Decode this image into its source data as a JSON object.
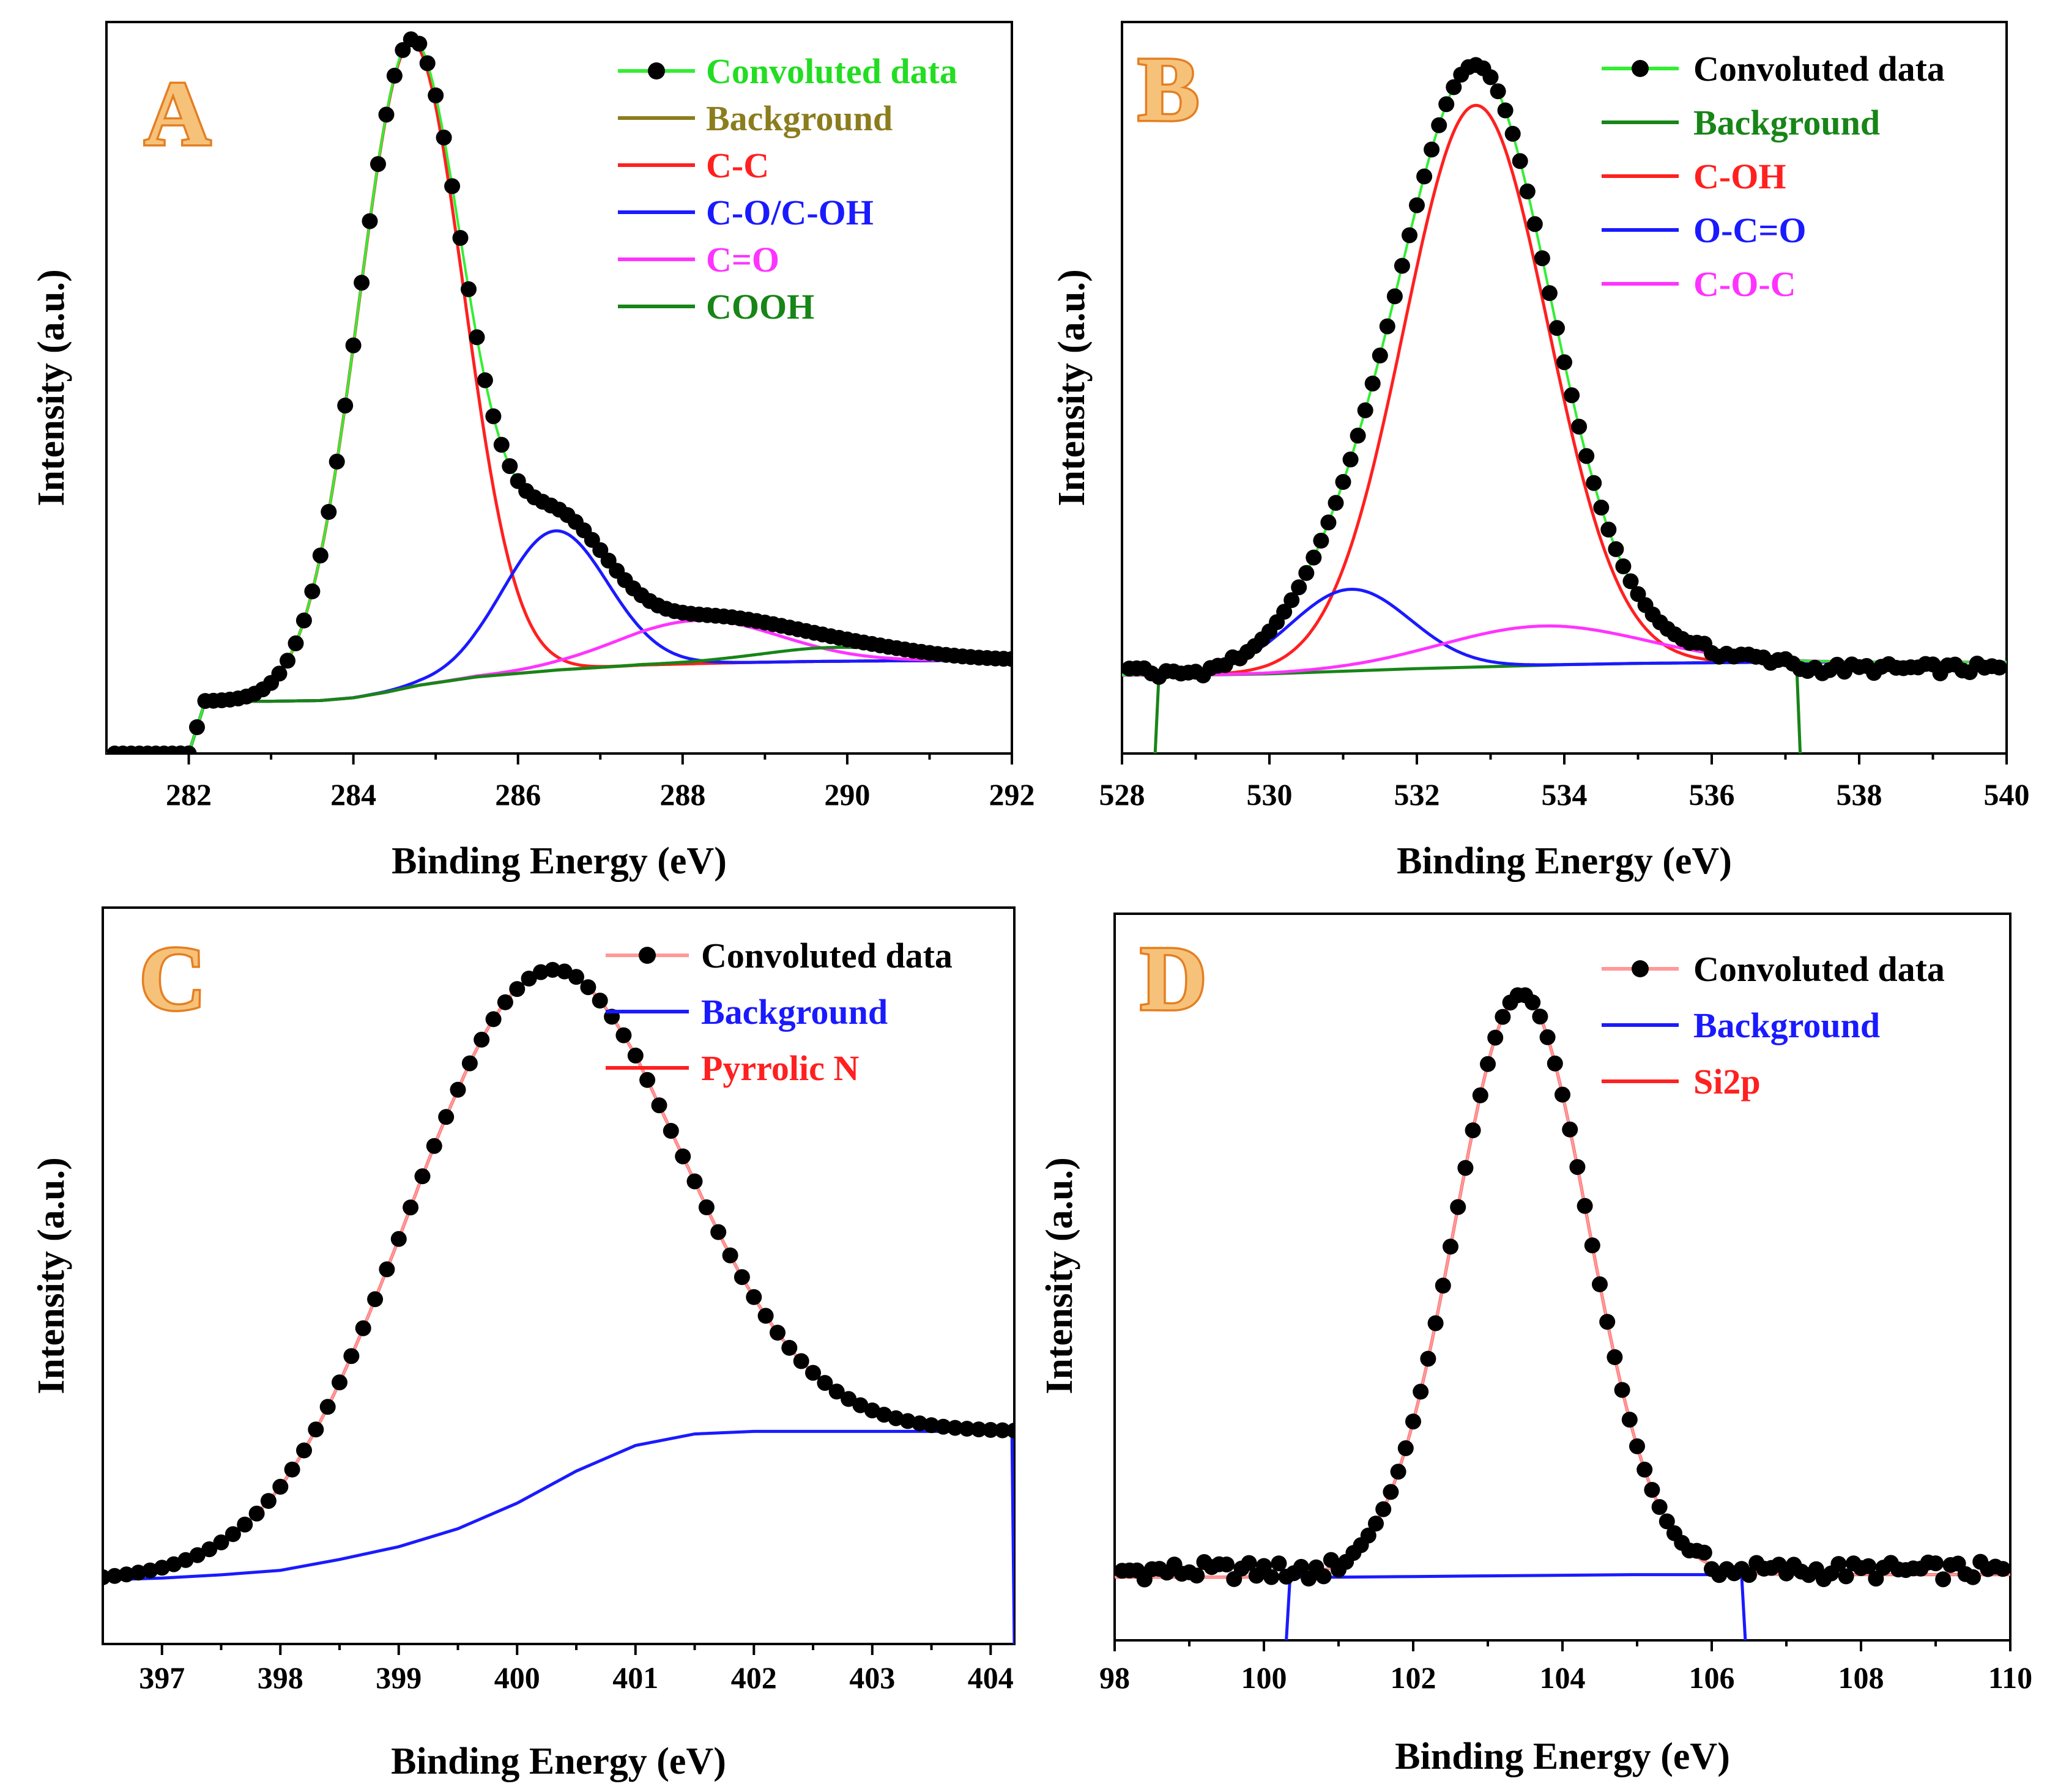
{
  "figure": {
    "panels": [
      "A",
      "B",
      "C",
      "D"
    ]
  },
  "chart_data": [
    {
      "panel": "A",
      "type": "line",
      "xlabel": "Binding Energy (eV)",
      "ylabel": "Intensity (a.u.)",
      "xlim": [
        281,
        292
      ],
      "ylim": [
        -0.03,
        1.02
      ],
      "xticks": [
        "282",
        "284",
        "286",
        "288",
        "290",
        "292"
      ],
      "x_reversed": false,
      "background": {
        "color": "#8B7D1E",
        "xs": [
          282.0,
          282.2,
          283.0,
          283.6,
          284.0,
          284.4,
          284.8,
          285.5,
          286.5,
          287.5,
          288.5,
          289.5,
          290.5,
          292.0
        ],
        "ys": [
          -0.03,
          0.045,
          0.045,
          0.046,
          0.05,
          0.058,
          0.068,
          0.08,
          0.09,
          0.097,
          0.1,
          0.102,
          0.103,
          0.104
        ]
      },
      "peaks": [
        {
          "name": "C-C",
          "color": "#ff2020",
          "center": 284.7,
          "height": 0.925,
          "fwhm": 1.5,
          "offset": "background"
        },
        {
          "name": "C-O/C-OH",
          "color": "#1a1aff",
          "center": 286.45,
          "height": 0.2,
          "fwhm": 1.5,
          "offset": "background"
        },
        {
          "name": "C=O",
          "color": "#ff33ff",
          "center": 288.2,
          "height": 0.062,
          "fwhm": 2.3,
          "offset": "background"
        },
        {
          "name": "COOH",
          "color": "#178517",
          "center": 289.9,
          "height": 0.02,
          "fwhm": 2.2,
          "offset": "background"
        }
      ],
      "data_points": {
        "name": "Convoluted data",
        "line_color": "#33ee33",
        "x_start": 281.1,
        "x_end": 292.0,
        "step": 0.1,
        "baseline": 0.04
      },
      "legend": [
        {
          "label": "Convoluted data",
          "color": "#22dd22",
          "marker": true
        },
        {
          "label": "Background",
          "color": "#8B7D1E",
          "marker": false
        },
        {
          "label": "C-C",
          "color": "#ff2020",
          "marker": false
        },
        {
          "label": "C-O/C-OH",
          "color": "#1a1aff",
          "marker": false
        },
        {
          "label": "C=O",
          "color": "#ff33ff",
          "marker": false
        },
        {
          "label": "COOH",
          "color": "#178517",
          "marker": false
        }
      ]
    },
    {
      "panel": "B",
      "type": "line",
      "xlabel": "Binding Energy (eV)",
      "ylabel": "Intensity (a.u.)",
      "xlim": [
        528,
        540
      ],
      "ylim": [
        -0.12,
        1.0
      ],
      "xticks": [
        "528",
        "530",
        "532",
        "534",
        "536",
        "538",
        "540"
      ],
      "x_reversed": false,
      "background": {
        "color": "#178517",
        "xs": [
          528.45,
          528.5,
          529.0,
          530.0,
          531.0,
          532.0,
          533.0,
          534.0,
          535.0,
          536.0,
          537.0,
          537.15,
          537.2
        ],
        "ys": [
          -0.12,
          0.0,
          0.0,
          0.002,
          0.006,
          0.01,
          0.013,
          0.016,
          0.018,
          0.019,
          0.02,
          0.02,
          -0.12
        ]
      },
      "peaks": [
        {
          "name": "C-OH",
          "color": "#ff2020",
          "center": 532.8,
          "height": 0.86,
          "fwhm": 2.3,
          "offset": "background"
        },
        {
          "name": "O-C=O",
          "color": "#1a1aff",
          "center": 531.1,
          "height": 0.125,
          "fwhm": 1.9,
          "offset": "background"
        },
        {
          "name": "C-O-C",
          "color": "#ff33ff",
          "center": 533.7,
          "height": 0.06,
          "fwhm": 3.2,
          "offset": "background"
        }
      ],
      "data_points": {
        "name": "Convoluted data",
        "line_color": "#33ee33",
        "x_start": 528.1,
        "x_end": 539.9,
        "step": 0.1,
        "baseline": 0.0
      },
      "legend": [
        {
          "label": "Convoluted data",
          "color": "#000000",
          "marker": true
        },
        {
          "label": "Background",
          "color": "#178517",
          "marker": false
        },
        {
          "label": "C-OH",
          "color": "#ff2020",
          "marker": false
        },
        {
          "label": "O-C=O",
          "color": "#1a1aff",
          "marker": false
        },
        {
          "label": "C-O-C",
          "color": "#ff33ff",
          "marker": false
        }
      ]
    },
    {
      "panel": "C",
      "type": "line",
      "xlabel": "Binding Energy (eV)",
      "ylabel": "Intensity (a.u.)",
      "xlim": [
        396.5,
        404.2
      ],
      "ylim": [
        -0.1,
        1.05
      ],
      "xticks": [
        "397",
        "398",
        "399",
        "400",
        "401",
        "402",
        "403",
        "404"
      ],
      "x_reversed": false,
      "background": {
        "color": "#1a1aff",
        "xs": [
          396.5,
          397.0,
          397.5,
          398.0,
          398.5,
          399.0,
          399.5,
          400.0,
          400.5,
          401.0,
          401.5,
          402.0,
          402.5,
          403.0,
          403.5,
          404.0,
          404.18,
          404.2
        ],
        "ys": [
          0.0,
          0.003,
          0.008,
          0.015,
          0.032,
          0.052,
          0.08,
          0.12,
          0.17,
          0.21,
          0.228,
          0.232,
          0.232,
          0.232,
          0.232,
          0.232,
          0.232,
          -0.1
        ]
      },
      "peaks": [
        {
          "name": "Pyrrolic N",
          "color": "#ff2020",
          "center": 400.15,
          "height": 0.81,
          "fwhm": 2.65,
          "offset": "background"
        }
      ],
      "data_points": {
        "name": "Convoluted data",
        "line_color": "#ff9999",
        "x_start": 396.5,
        "x_end": 404.2,
        "step": 0.1,
        "baseline": 0.0
      },
      "legend": [
        {
          "label": "Convoluted data",
          "color": "#000000",
          "marker": true
        },
        {
          "label": "Background",
          "color": "#1a1aff",
          "marker": false
        },
        {
          "label": "Pyrrolic N",
          "color": "#ff2020",
          "marker": false
        }
      ]
    },
    {
      "panel": "D",
      "type": "line",
      "xlabel": "Binding Energy (eV)",
      "ylabel": "Intensity (a.u.)",
      "xlim": [
        98,
        110
      ],
      "ylim": [
        -0.1,
        1.05
      ],
      "xticks": [
        "98",
        "100",
        "102",
        "104",
        "106",
        "108",
        "110"
      ],
      "x_reversed": false,
      "background": {
        "color": "#1a1aff",
        "xs": [
          100.3,
          100.35,
          101.0,
          102.0,
          103.0,
          104.0,
          105.0,
          106.0,
          106.4,
          106.45
        ],
        "ys": [
          -0.1,
          0.0,
          0.0,
          0.001,
          0.002,
          0.003,
          0.004,
          0.004,
          0.004,
          -0.1
        ]
      },
      "peaks": [
        {
          "name": "Si2p",
          "color": "#ff2020",
          "center": 103.45,
          "height": 0.92,
          "fwhm": 2.1,
          "offset": "background"
        }
      ],
      "data_points": {
        "name": "Convoluted data",
        "line_color": "#ff9999",
        "x_start": 98.1,
        "x_end": 109.9,
        "step": 0.1,
        "baseline": 0.0
      },
      "legend": [
        {
          "label": "Convoluted data",
          "color": "#000000",
          "marker": true
        },
        {
          "label": "Background",
          "color": "#1a1aff",
          "marker": false
        },
        {
          "label": "Si2p",
          "color": "#ff2020",
          "marker": false
        }
      ]
    }
  ]
}
